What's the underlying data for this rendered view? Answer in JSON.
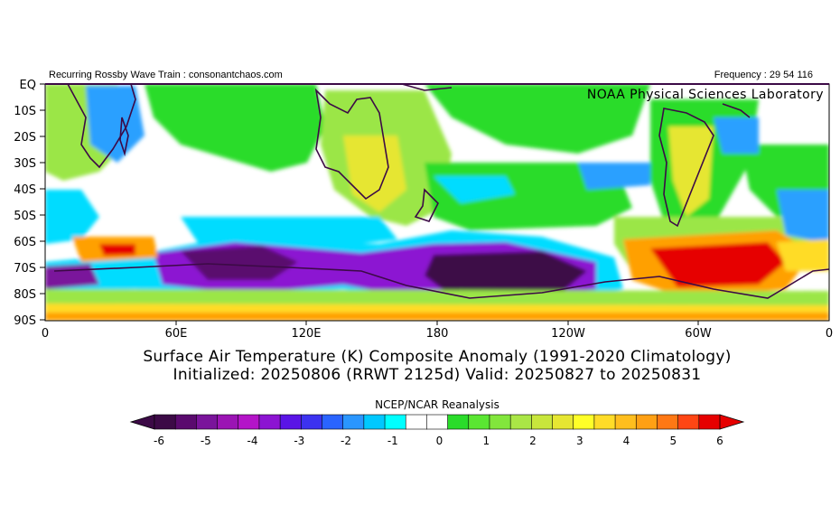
{
  "header": {
    "left_text": "Recurring Rossby Wave Train : consonantchaos.com",
    "right_text": "Frequency : 29 54 116"
  },
  "map": {
    "watermark": "NOAA Physical Sciences Laboratory",
    "lat_labels": [
      "EQ",
      "10S",
      "20S",
      "30S",
      "40S",
      "50S",
      "60S",
      "70S",
      "80S",
      "90S"
    ],
    "lon_labels": [
      "0",
      "60E",
      "120E",
      "180",
      "120W",
      "60W",
      "0"
    ],
    "colors": {
      "deep_purple": "#3c0a46",
      "purple": "#7a14c8",
      "cyan": "#00dcff",
      "light_blue": "#2aa0ff",
      "white": "#ffffff",
      "green": "#2adc2a",
      "light_green": "#9be646",
      "yellow": "#e6e62a",
      "orange": "#ffa000",
      "red": "#e60000",
      "coast": "#3c0a46"
    }
  },
  "titles": {
    "line1": "Surface Air Temperature (K) Composite Anomaly (1991-2020 Climatology)",
    "line2": "Initialized: 20250806 (RRWT 2125d) Valid: 20250827 to 20250831"
  },
  "colorbar": {
    "source": "NCEP/NCAR Reanalysis",
    "tick_labels": [
      "-6",
      "-5",
      "-4",
      "-3",
      "-2",
      "-1",
      "0",
      "1",
      "2",
      "3",
      "4",
      "5",
      "6"
    ],
    "bins": [
      "#3c0a46",
      "#5a0a6e",
      "#7a149b",
      "#9b14b4",
      "#b414c8",
      "#8c14d2",
      "#5a14e6",
      "#3c32f0",
      "#2a64ff",
      "#2a96ff",
      "#00c8ff",
      "#00ffff",
      "#ffffff",
      "#ffffff",
      "#2adc2a",
      "#5ae632",
      "#82e63c",
      "#aae646",
      "#c8e63c",
      "#e6e632",
      "#ffff28",
      "#ffdc28",
      "#ffbe1e",
      "#ffa014",
      "#ff7814",
      "#ff4614",
      "#e60000"
    ]
  }
}
